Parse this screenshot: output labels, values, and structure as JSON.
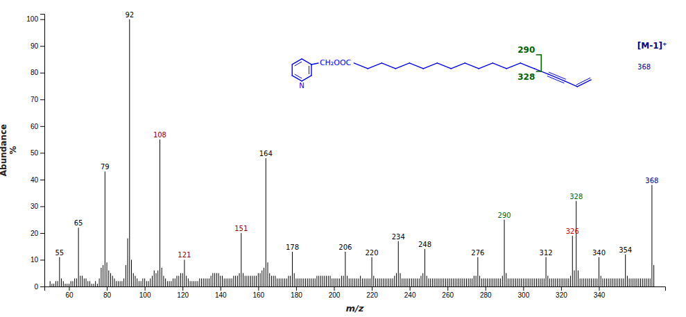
{
  "chart_data": {
    "type": "bar",
    "x_label": "m/z",
    "y_label": "Abundance\n%",
    "color": "black",
    "x": [
      50,
      51,
      52,
      53,
      54,
      55,
      56,
      57,
      58,
      59,
      60,
      61,
      62,
      63,
      64,
      65,
      66,
      67,
      68,
      69,
      70,
      71,
      72,
      73,
      74,
      75,
      76,
      77,
      78,
      79,
      80,
      81,
      82,
      83,
      84,
      85,
      86,
      87,
      88,
      89,
      90,
      91,
      92,
      93,
      94,
      95,
      96,
      97,
      98,
      99,
      100,
      101,
      102,
      103,
      104,
      105,
      106,
      107,
      108,
      109,
      110,
      111,
      112,
      113,
      114,
      115,
      116,
      117,
      118,
      119,
      120,
      121,
      122,
      123,
      124,
      125,
      126,
      127,
      128,
      129,
      130,
      131,
      132,
      133,
      134,
      135,
      136,
      137,
      138,
      139,
      140,
      141,
      142,
      143,
      144,
      145,
      146,
      147,
      148,
      149,
      150,
      151,
      152,
      153,
      154,
      155,
      156,
      157,
      158,
      159,
      160,
      161,
      162,
      163,
      164,
      165,
      166,
      167,
      168,
      169,
      170,
      171,
      172,
      173,
      174,
      175,
      176,
      177,
      178,
      179,
      180,
      181,
      182,
      183,
      184,
      185,
      186,
      187,
      188,
      189,
      190,
      191,
      192,
      193,
      194,
      195,
      196,
      197,
      198,
      199,
      200,
      201,
      202,
      203,
      204,
      205,
      206,
      207,
      208,
      209,
      210,
      211,
      212,
      213,
      214,
      215,
      216,
      217,
      218,
      219,
      220,
      221,
      222,
      223,
      224,
      225,
      226,
      227,
      228,
      229,
      230,
      231,
      232,
      233,
      234,
      235,
      236,
      237,
      238,
      239,
      240,
      241,
      242,
      243,
      244,
      245,
      246,
      247,
      248,
      249,
      250,
      251,
      252,
      253,
      254,
      255,
      256,
      257,
      258,
      259,
      260,
      261,
      262,
      263,
      264,
      265,
      266,
      267,
      268,
      269,
      270,
      271,
      272,
      273,
      274,
      275,
      276,
      277,
      278,
      279,
      280,
      281,
      282,
      283,
      284,
      285,
      286,
      287,
      288,
      289,
      290,
      291,
      292,
      293,
      294,
      295,
      296,
      297,
      298,
      299,
      300,
      301,
      302,
      303,
      304,
      305,
      306,
      307,
      308,
      309,
      310,
      311,
      312,
      313,
      314,
      315,
      316,
      317,
      318,
      319,
      320,
      321,
      322,
      323,
      324,
      325,
      326,
      327,
      328,
      329,
      330,
      331,
      332,
      333,
      334,
      335,
      336,
      337,
      338,
      339,
      340,
      341,
      342,
      343,
      344,
      345,
      346,
      347,
      348,
      349,
      350,
      351,
      352,
      353,
      354,
      355,
      356,
      357,
      358,
      359,
      360,
      361,
      362,
      363,
      364,
      365,
      366,
      367,
      368,
      369
    ],
    "values": [
      2,
      1,
      1,
      2,
      2,
      11,
      3,
      2,
      1,
      1,
      1,
      2,
      2,
      3,
      3,
      22,
      4,
      4,
      3,
      3,
      2,
      2,
      1,
      1,
      2,
      1,
      3,
      7,
      8,
      43,
      9,
      6,
      5,
      4,
      3,
      2,
      2,
      2,
      2,
      3,
      8,
      18,
      100,
      10,
      5,
      4,
      3,
      2,
      2,
      3,
      3,
      2,
      2,
      3,
      4,
      6,
      5,
      6,
      55,
      7,
      4,
      3,
      2,
      2,
      2,
      3,
      3,
      4,
      4,
      5,
      5,
      10,
      4,
      3,
      2,
      2,
      2,
      2,
      2,
      3,
      3,
      3,
      3,
      3,
      3,
      4,
      5,
      5,
      5,
      5,
      4,
      4,
      3,
      3,
      3,
      3,
      3,
      4,
      4,
      4,
      5,
      20,
      5,
      4,
      4,
      4,
      4,
      4,
      4,
      4,
      5,
      5,
      6,
      7,
      48,
      9,
      5,
      4,
      4,
      4,
      3,
      3,
      3,
      3,
      3,
      3,
      4,
      4,
      13,
      5,
      3,
      3,
      3,
      3,
      3,
      3,
      3,
      3,
      3,
      3,
      3,
      4,
      4,
      4,
      4,
      4,
      4,
      4,
      4,
      3,
      3,
      3,
      3,
      3,
      4,
      4,
      13,
      4,
      3,
      3,
      3,
      3,
      3,
      3,
      4,
      3,
      3,
      3,
      3,
      3,
      11,
      4,
      3,
      3,
      3,
      3,
      3,
      3,
      3,
      3,
      3,
      3,
      4,
      5,
      17,
      5,
      3,
      3,
      3,
      3,
      3,
      3,
      3,
      3,
      3,
      3,
      4,
      5,
      14,
      4,
      3,
      3,
      3,
      3,
      3,
      3,
      3,
      3,
      3,
      3,
      3,
      3,
      3,
      3,
      3,
      3,
      3,
      3,
      3,
      3,
      3,
      3,
      3,
      3,
      4,
      4,
      11,
      4,
      3,
      3,
      3,
      3,
      3,
      3,
      3,
      3,
      3,
      3,
      3,
      4,
      25,
      5,
      3,
      3,
      3,
      3,
      3,
      3,
      3,
      3,
      3,
      3,
      3,
      3,
      3,
      3,
      3,
      3,
      3,
      3,
      3,
      3,
      11,
      4,
      3,
      3,
      3,
      3,
      3,
      3,
      3,
      3,
      3,
      3,
      3,
      4,
      19,
      6,
      32,
      6,
      3,
      3,
      3,
      3,
      3,
      3,
      3,
      3,
      3,
      3,
      11,
      4,
      3,
      3,
      3,
      3,
      3,
      3,
      3,
      3,
      3,
      3,
      3,
      3,
      12,
      4,
      3,
      3,
      3,
      3,
      3,
      3,
      3,
      3,
      3,
      3,
      3,
      3,
      38,
      8
    ],
    "xlim": [
      47,
      375
    ],
    "ylim": [
      0,
      102
    ],
    "xticks": [
      60,
      80,
      100,
      120,
      140,
      160,
      180,
      200,
      220,
      240,
      260,
      280,
      300,
      320,
      340
    ],
    "yticks": [
      0,
      10,
      20,
      30,
      40,
      50,
      60,
      70,
      80,
      90,
      100
    ],
    "annotations": [
      {
        "text": "55",
        "x": 55,
        "color": "black"
      },
      {
        "text": "65",
        "x": 65,
        "color": "black"
      },
      {
        "text": "79",
        "x": 79,
        "color": "black"
      },
      {
        "text": "92",
        "x": 92,
        "color": "black"
      },
      {
        "text": "108",
        "x": 108,
        "color": "#8B0000"
      },
      {
        "text": "121",
        "x": 121,
        "color": "#8B0000"
      },
      {
        "text": "151",
        "x": 151,
        "color": "#8B0000"
      },
      {
        "text": "164",
        "x": 164,
        "color": "black"
      },
      {
        "text": "178",
        "x": 178,
        "color": "black"
      },
      {
        "text": "206",
        "x": 206,
        "color": "black"
      },
      {
        "text": "220",
        "x": 220,
        "color": "black"
      },
      {
        "text": "234",
        "x": 234,
        "color": "black"
      },
      {
        "text": "248",
        "x": 248,
        "color": "black"
      },
      {
        "text": "276",
        "x": 276,
        "color": "black"
      },
      {
        "text": "290",
        "x": 290,
        "color": "#006400"
      },
      {
        "text": "312",
        "x": 312,
        "color": "black"
      },
      {
        "text": "326",
        "x": 326,
        "color": "#CC0000"
      },
      {
        "text": "328",
        "x": 328,
        "color": "#006400"
      },
      {
        "text": "340",
        "x": 340,
        "color": "black"
      },
      {
        "text": "354",
        "x": 354,
        "color": "black"
      },
      {
        "text": "368",
        "x": 368,
        "color": "#00008B"
      },
      {
        "text": "[M-1]⁺",
        "color": "#00008B"
      },
      {
        "text": "368",
        "color": "#00008B"
      },
      {
        "text": "N",
        "color": "blue"
      },
      {
        "text": "CH₂OOC",
        "color": "blue"
      },
      {
        "text": "290",
        "color": "#006400"
      },
      {
        "text": "328",
        "color": "#006400"
      }
    ]
  }
}
